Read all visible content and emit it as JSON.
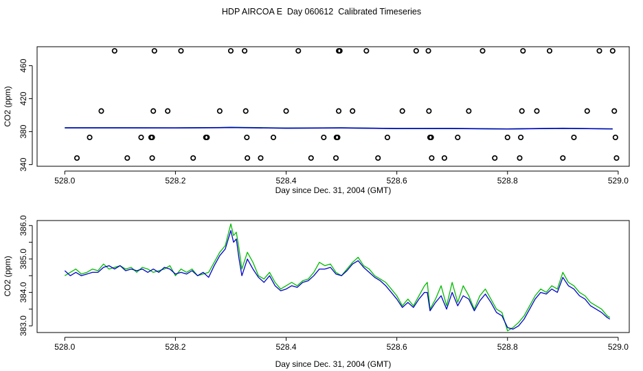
{
  "page": {
    "title": "HDP AIRCOA E  Day 060612  Calibrated Timeseries"
  },
  "chart_data": [
    {
      "type": "scatter",
      "xlabel": "Day since Dec. 31, 2004 (GMT)",
      "ylabel": "CO2 (ppm)",
      "xlim": [
        527.95,
        529.02
      ],
      "ylim": [
        338,
        483
      ],
      "x_ticks": [
        528.0,
        528.2,
        528.4,
        528.6,
        528.8,
        529.0
      ],
      "x_tick_labels": [
        "528.0",
        "528.2",
        "528.4",
        "528.6",
        "528.8",
        "529.0"
      ],
      "y_ticks": [
        340,
        380,
        420,
        460
      ],
      "y_tick_labels": [
        "340",
        "380",
        "420",
        "460"
      ],
      "grid": false,
      "colors": {
        "points": "#000000",
        "green": "#00bb00",
        "blue": "#0000cc"
      },
      "series": [
        {
          "marker": "open-circle",
          "points": [
            [
              528.09,
              478
            ],
            [
              528.162,
              478
            ],
            [
              528.21,
              478
            ],
            [
              528.3,
              478
            ],
            [
              528.325,
              478
            ],
            [
              528.422,
              478
            ],
            [
              528.495,
              478
            ],
            [
              528.497,
              478
            ],
            [
              528.545,
              478
            ],
            [
              528.635,
              478
            ],
            [
              528.657,
              478
            ],
            [
              528.755,
              478
            ],
            [
              528.828,
              478
            ],
            [
              528.876,
              478
            ],
            [
              528.966,
              478
            ],
            [
              528.99,
              478
            ],
            [
              528.066,
              405
            ],
            [
              528.16,
              405
            ],
            [
              528.186,
              405
            ],
            [
              528.28,
              405
            ],
            [
              528.327,
              405
            ],
            [
              528.4,
              405
            ],
            [
              528.495,
              405
            ],
            [
              528.52,
              405
            ],
            [
              528.61,
              405
            ],
            [
              528.658,
              405
            ],
            [
              528.73,
              405
            ],
            [
              528.826,
              405
            ],
            [
              528.853,
              405
            ],
            [
              528.944,
              405
            ],
            [
              528.993,
              405
            ],
            [
              528.045,
              373
            ],
            [
              528.138,
              373
            ],
            [
              528.156,
              373
            ],
            [
              528.158,
              373
            ],
            [
              528.255,
              373
            ],
            [
              528.257,
              373
            ],
            [
              528.329,
              373
            ],
            [
              528.377,
              373
            ],
            [
              528.468,
              373
            ],
            [
              528.491,
              373
            ],
            [
              528.493,
              373
            ],
            [
              528.583,
              373
            ],
            [
              528.66,
              373
            ],
            [
              528.662,
              373
            ],
            [
              528.71,
              373
            ],
            [
              528.8,
              373
            ],
            [
              528.824,
              373
            ],
            [
              528.92,
              373
            ],
            [
              528.995,
              373
            ],
            [
              528.022,
              348
            ],
            [
              528.113,
              348
            ],
            [
              528.158,
              348
            ],
            [
              528.232,
              348
            ],
            [
              528.33,
              348
            ],
            [
              528.354,
              348
            ],
            [
              528.445,
              348
            ],
            [
              528.49,
              348
            ],
            [
              528.566,
              348
            ],
            [
              528.663,
              348
            ],
            [
              528.686,
              348
            ],
            [
              528.777,
              348
            ],
            [
              528.822,
              348
            ],
            [
              528.9,
              348
            ],
            [
              528.997,
              348
            ]
          ]
        },
        {
          "name": "",
          "color": "green",
          "line": "flat",
          "x": [
            528.0,
            528.1,
            528.2,
            528.28,
            528.3,
            528.4,
            528.5,
            528.6,
            528.7,
            528.8,
            528.9,
            528.99
          ],
          "y": [
            384.6,
            384.6,
            384.5,
            384.9,
            385.2,
            384.3,
            384.6,
            383.8,
            383.9,
            383.3,
            384.1,
            383.3
          ]
        },
        {
          "name": "",
          "color": "blue",
          "line": "flat",
          "x": [
            528.0,
            528.1,
            528.2,
            528.28,
            528.3,
            528.4,
            528.5,
            528.6,
            528.7,
            528.8,
            528.9,
            528.99
          ],
          "y": [
            384.6,
            384.6,
            384.5,
            384.8,
            385.0,
            384.2,
            384.5,
            383.8,
            383.8,
            383.2,
            384.0,
            383.3
          ]
        }
      ]
    },
    {
      "type": "line",
      "xlabel": "Day since Dec. 31, 2004 (GMT)",
      "ylabel": "CO2 (ppm)",
      "xlim": [
        527.95,
        529.02
      ],
      "ylim": [
        382.8,
        386.15
      ],
      "x_ticks": [
        528.0,
        528.2,
        528.4,
        528.6,
        528.8,
        529.0
      ],
      "x_tick_labels": [
        "528.0",
        "528.2",
        "528.4",
        "528.6",
        "528.8",
        "529.0"
      ],
      "y_ticks": [
        383.0,
        384.0,
        385.0,
        386.0
      ],
      "y_tick_labels": [
        "383.0",
        "384.0",
        "385.0",
        "386.0"
      ],
      "y_minor_ticks": [
        383.5,
        384.5,
        385.5
      ],
      "grid": false,
      "series": [
        {
          "name": "",
          "color": "#00bb00",
          "x": [
            528.0,
            528.01,
            528.02,
            528.03,
            528.04,
            528.05,
            528.06,
            528.07,
            528.08,
            528.09,
            528.1,
            528.11,
            528.12,
            528.13,
            528.14,
            528.15,
            528.16,
            528.17,
            528.18,
            528.19,
            528.2,
            528.21,
            528.22,
            528.23,
            528.24,
            528.25,
            528.26,
            528.27,
            528.28,
            528.29,
            528.3,
            528.305,
            528.31,
            528.315,
            528.32,
            528.33,
            528.34,
            528.35,
            528.36,
            528.37,
            528.38,
            528.39,
            528.4,
            528.41,
            528.42,
            528.43,
            528.44,
            528.45,
            528.46,
            528.47,
            528.48,
            528.49,
            528.5,
            528.51,
            528.52,
            528.53,
            528.54,
            528.55,
            528.56,
            528.57,
            528.58,
            528.59,
            528.6,
            528.61,
            528.62,
            528.63,
            528.64,
            528.65,
            528.655,
            528.66,
            528.67,
            528.68,
            528.69,
            528.7,
            528.71,
            528.72,
            528.73,
            528.74,
            528.75,
            528.76,
            528.77,
            528.78,
            528.79,
            528.8,
            528.81,
            528.82,
            528.83,
            528.84,
            528.85,
            528.86,
            528.87,
            528.88,
            528.89,
            528.9,
            528.91,
            528.92,
            528.93,
            528.94,
            528.95,
            528.96,
            528.97,
            528.98,
            528.985
          ],
          "y": [
            384.5,
            384.6,
            384.7,
            384.55,
            384.6,
            384.7,
            384.65,
            384.85,
            384.7,
            384.75,
            384.8,
            384.7,
            384.75,
            384.6,
            384.75,
            384.7,
            384.6,
            384.65,
            384.7,
            384.8,
            384.5,
            384.7,
            384.6,
            384.7,
            384.5,
            384.55,
            384.6,
            384.9,
            385.2,
            385.4,
            386.05,
            385.7,
            385.8,
            385.3,
            384.7,
            385.2,
            384.9,
            384.5,
            384.4,
            384.6,
            384.3,
            384.1,
            384.2,
            384.3,
            384.2,
            384.35,
            384.4,
            384.6,
            384.9,
            384.8,
            384.85,
            384.6,
            384.5,
            384.7,
            384.9,
            385.05,
            384.8,
            384.7,
            384.5,
            384.4,
            384.3,
            384.1,
            383.9,
            383.6,
            383.8,
            383.6,
            383.9,
            384.2,
            384.3,
            383.5,
            383.8,
            384.2,
            383.6,
            384.3,
            383.7,
            384.2,
            383.9,
            383.5,
            383.9,
            384.1,
            383.8,
            383.5,
            383.4,
            382.85,
            382.95,
            383.1,
            383.3,
            383.6,
            383.9,
            384.1,
            384.0,
            384.2,
            384.1,
            384.6,
            384.3,
            384.2,
            384.0,
            383.9,
            383.7,
            383.6,
            383.5,
            383.3,
            383.25
          ]
        },
        {
          "name": "",
          "color": "#0000cc",
          "x": [
            528.0,
            528.01,
            528.02,
            528.03,
            528.04,
            528.05,
            528.06,
            528.07,
            528.08,
            528.09,
            528.1,
            528.11,
            528.12,
            528.13,
            528.14,
            528.15,
            528.16,
            528.17,
            528.18,
            528.19,
            528.2,
            528.21,
            528.22,
            528.23,
            528.24,
            528.25,
            528.26,
            528.27,
            528.28,
            528.29,
            528.3,
            528.305,
            528.31,
            528.315,
            528.32,
            528.33,
            528.34,
            528.35,
            528.36,
            528.37,
            528.38,
            528.39,
            528.4,
            528.41,
            528.42,
            528.43,
            528.44,
            528.45,
            528.46,
            528.47,
            528.48,
            528.49,
            528.5,
            528.51,
            528.52,
            528.53,
            528.54,
            528.55,
            528.56,
            528.57,
            528.58,
            528.59,
            528.6,
            528.61,
            528.62,
            528.63,
            528.64,
            528.65,
            528.655,
            528.66,
            528.67,
            528.68,
            528.69,
            528.7,
            528.71,
            528.72,
            528.73,
            528.74,
            528.75,
            528.76,
            528.77,
            528.78,
            528.79,
            528.8,
            528.81,
            528.82,
            528.83,
            528.84,
            528.85,
            528.86,
            528.87,
            528.88,
            528.89,
            528.9,
            528.91,
            528.92,
            528.93,
            528.94,
            528.95,
            528.96,
            528.97,
            528.98,
            528.985
          ],
          "y": [
            384.65,
            384.5,
            384.6,
            384.5,
            384.55,
            384.6,
            384.6,
            384.75,
            384.8,
            384.7,
            384.8,
            384.65,
            384.7,
            384.65,
            384.7,
            384.6,
            384.7,
            384.6,
            384.75,
            384.7,
            384.55,
            384.6,
            384.55,
            384.65,
            384.5,
            384.6,
            384.45,
            384.8,
            385.1,
            385.3,
            385.85,
            385.5,
            385.6,
            385.0,
            384.5,
            385.0,
            384.7,
            384.45,
            384.3,
            384.5,
            384.2,
            384.05,
            384.1,
            384.2,
            384.15,
            384.3,
            384.35,
            384.5,
            384.7,
            384.7,
            384.75,
            384.55,
            384.5,
            384.65,
            384.85,
            384.95,
            384.75,
            384.6,
            384.45,
            384.35,
            384.2,
            384.0,
            383.8,
            383.55,
            383.7,
            383.55,
            383.8,
            384.0,
            384.0,
            383.45,
            383.7,
            383.9,
            383.5,
            384.0,
            383.6,
            383.9,
            383.8,
            383.45,
            383.75,
            383.95,
            383.7,
            383.4,
            383.3,
            382.95,
            382.9,
            383.0,
            383.2,
            383.5,
            383.8,
            384.0,
            383.95,
            384.1,
            384.0,
            384.45,
            384.2,
            384.1,
            383.9,
            383.8,
            383.6,
            383.5,
            383.4,
            383.25,
            383.2
          ]
        }
      ]
    }
  ]
}
